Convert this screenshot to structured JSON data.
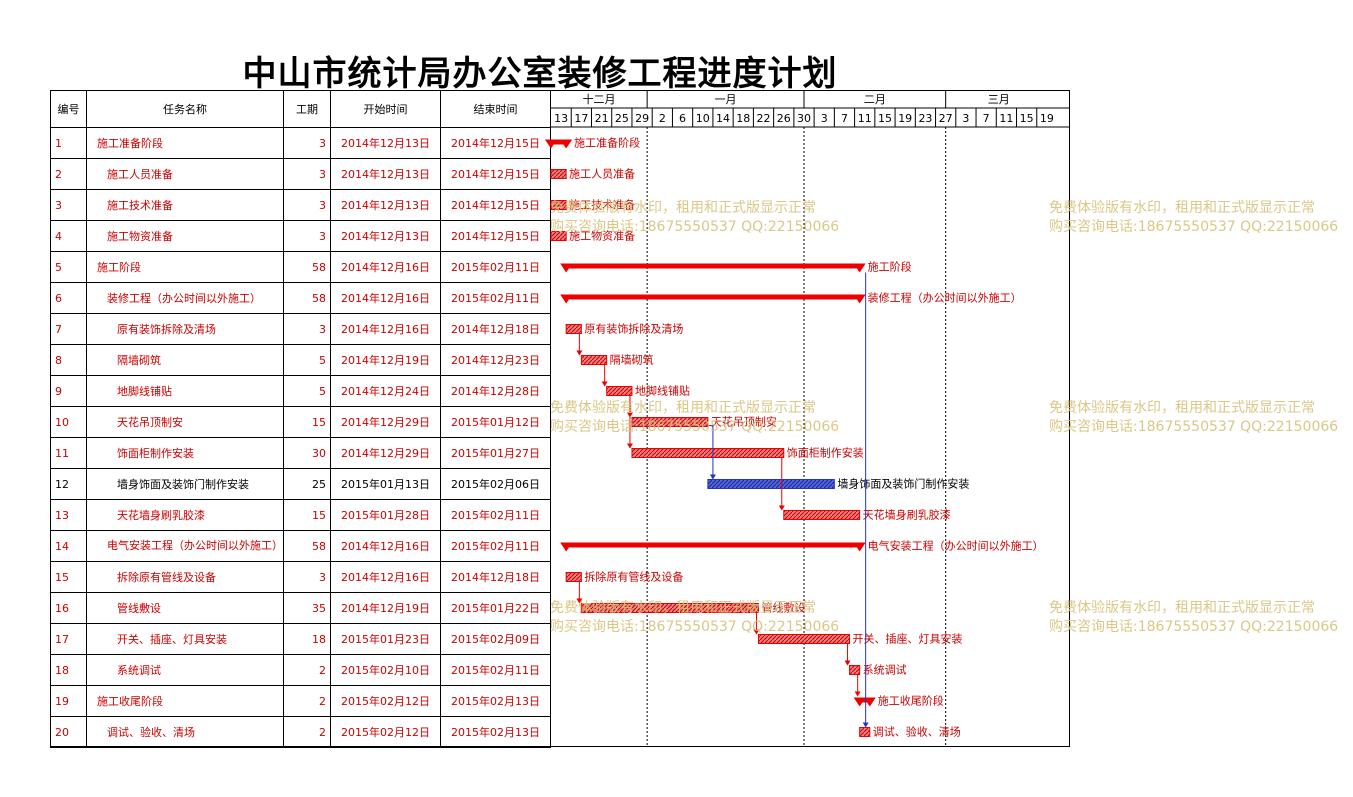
{
  "title": "中山市统计局办公室装修工程进度计划",
  "headers": {
    "id": "编号",
    "name": "任务名称",
    "duration": "工期",
    "start": "开始时间",
    "end": "结束时间"
  },
  "colors": {
    "red": "#ee0000",
    "summary": "#ee0000",
    "task_fill": "#e88080",
    "blue": "#2233cc",
    "blue_fill": "#5566cc"
  },
  "watermark": {
    "line1": "免费体验版有水印，租用和正式版显示正常",
    "line2": "购买咨询电话:18675550537 QQ:22150066"
  },
  "chart_data": {
    "type": "gantt",
    "months": [
      {
        "label": "十二月",
        "start": "2014-12-13",
        "end": "2014-12-31"
      },
      {
        "label": "一月",
        "start": "2015-01-01",
        "end": "2015-01-31"
      },
      {
        "label": "二月",
        "start": "2015-02-01",
        "end": "2015-02-28"
      },
      {
        "label": "三月",
        "start": "2015-03-01",
        "end": "2015-03-21"
      }
    ],
    "day_ticks": [
      "13",
      "17",
      "21",
      "25",
      "29",
      "2",
      "6",
      "10",
      "14",
      "18",
      "22",
      "26",
      "30",
      "3",
      "7",
      "11",
      "15",
      "19",
      "23",
      "27",
      "3",
      "7",
      "11",
      "15",
      "19"
    ],
    "x_start": "2014-12-13",
    "x_end": "2015-03-21",
    "tasks": [
      {
        "id": "1",
        "name": "施工准备阶段",
        "level": 1,
        "duration": "3",
        "start": "2014年12月13日",
        "end": "2014年12月15日",
        "start_date": "2014-12-13",
        "end_date": "2014-12-15",
        "kind": "summary",
        "color": "red",
        "label": "施工准备阶段"
      },
      {
        "id": "2",
        "name": "施工人员准备",
        "level": 2,
        "duration": "3",
        "start": "2014年12月13日",
        "end": "2014年12月15日",
        "start_date": "2014-12-13",
        "end_date": "2014-12-15",
        "kind": "task",
        "color": "red",
        "label": "施工人员准备"
      },
      {
        "id": "3",
        "name": "施工技术准备",
        "level": 2,
        "duration": "3",
        "start": "2014年12月13日",
        "end": "2014年12月15日",
        "start_date": "2014-12-13",
        "end_date": "2014-12-15",
        "kind": "task",
        "color": "red",
        "label": "施工技术准备"
      },
      {
        "id": "4",
        "name": "施工物资准备",
        "level": 2,
        "duration": "3",
        "start": "2014年12月13日",
        "end": "2014年12月15日",
        "start_date": "2014-12-13",
        "end_date": "2014-12-15",
        "kind": "task",
        "color": "red",
        "label": "施工物资准备"
      },
      {
        "id": "5",
        "name": "施工阶段",
        "level": 1,
        "duration": "58",
        "start": "2014年12月16日",
        "end": "2015年02月11日",
        "start_date": "2014-12-16",
        "end_date": "2015-02-11",
        "kind": "summary",
        "color": "red",
        "label": "施工阶段"
      },
      {
        "id": "6",
        "name": "装修工程（办公时间以外施工）",
        "level": 2,
        "duration": "58",
        "start": "2014年12月16日",
        "end": "2015年02月11日",
        "start_date": "2014-12-16",
        "end_date": "2015-02-11",
        "kind": "summary",
        "color": "red",
        "label": "装修工程（办公时间以外施工）"
      },
      {
        "id": "7",
        "name": "原有装饰拆除及清场",
        "level": 3,
        "duration": "3",
        "start": "2014年12月16日",
        "end": "2014年12月18日",
        "start_date": "2014-12-16",
        "end_date": "2014-12-18",
        "kind": "task",
        "color": "red",
        "label": "原有装饰拆除及清场"
      },
      {
        "id": "8",
        "name": "隔墙砌筑",
        "level": 3,
        "duration": "5",
        "start": "2014年12月19日",
        "end": "2014年12月23日",
        "start_date": "2014-12-19",
        "end_date": "2014-12-23",
        "kind": "task",
        "color": "red",
        "label": "隔墙砌筑"
      },
      {
        "id": "9",
        "name": "地脚线铺贴",
        "level": 3,
        "duration": "5",
        "start": "2014年12月24日",
        "end": "2014年12月28日",
        "start_date": "2014-12-24",
        "end_date": "2014-12-28",
        "kind": "task",
        "color": "red",
        "label": "地脚线铺贴"
      },
      {
        "id": "10",
        "name": "天花吊顶制安",
        "level": 3,
        "duration": "15",
        "start": "2014年12月29日",
        "end": "2015年01月12日",
        "start_date": "2014-12-29",
        "end_date": "2015-01-12",
        "kind": "task",
        "color": "red",
        "label": "天花吊顶制安"
      },
      {
        "id": "11",
        "name": "饰面柜制作安装",
        "level": 3,
        "duration": "30",
        "start": "2014年12月29日",
        "end": "2015年01月27日",
        "start_date": "2014-12-29",
        "end_date": "2015-01-27",
        "kind": "task",
        "color": "red",
        "label": "饰面柜制作安装"
      },
      {
        "id": "12",
        "name": "墙身饰面及装饰门制作安装",
        "level": 3,
        "duration": "25",
        "start": "2015年01月13日",
        "end": "2015年02月06日",
        "start_date": "2015-01-13",
        "end_date": "2015-02-06",
        "kind": "task",
        "color": "blue",
        "label": "墙身饰面及装饰门制作安装"
      },
      {
        "id": "13",
        "name": "天花墙身刷乳胶漆",
        "level": 3,
        "duration": "15",
        "start": "2015年01月28日",
        "end": "2015年02月11日",
        "start_date": "2015-01-28",
        "end_date": "2015-02-11",
        "kind": "task",
        "color": "red",
        "label": "天花墙身刷乳胶漆"
      },
      {
        "id": "14",
        "name": "电气安装工程（办公时间以外施工）",
        "level": 2,
        "duration": "58",
        "start": "2014年12月16日",
        "end": "2015年02月11日",
        "start_date": "2014-12-16",
        "end_date": "2015-02-11",
        "kind": "summary",
        "color": "red",
        "label": "电气安装工程（办公时间以外施工）"
      },
      {
        "id": "15",
        "name": "拆除原有管线及设备",
        "level": 3,
        "duration": "3",
        "start": "2014年12月16日",
        "end": "2014年12月18日",
        "start_date": "2014-12-16",
        "end_date": "2014-12-18",
        "kind": "task",
        "color": "red",
        "label": "拆除原有管线及设备"
      },
      {
        "id": "16",
        "name": "管线敷设",
        "level": 3,
        "duration": "35",
        "start": "2014年12月19日",
        "end": "2015年01月22日",
        "start_date": "2014-12-19",
        "end_date": "2015-01-22",
        "kind": "task",
        "color": "red",
        "label": "管线敷设"
      },
      {
        "id": "17",
        "name": "开关、插座、灯具安装",
        "level": 3,
        "duration": "18",
        "start": "2015年01月23日",
        "end": "2015年02月09日",
        "start_date": "2015-01-23",
        "end_date": "2015-02-09",
        "kind": "task",
        "color": "red",
        "label": "开关、插座、灯具安装"
      },
      {
        "id": "18",
        "name": "系统调试",
        "level": 3,
        "duration": "2",
        "start": "2015年02月10日",
        "end": "2015年02月11日",
        "start_date": "2015-02-10",
        "end_date": "2015-02-11",
        "kind": "task",
        "color": "red",
        "label": "系统调试"
      },
      {
        "id": "19",
        "name": "施工收尾阶段",
        "level": 1,
        "duration": "2",
        "start": "2015年02月12日",
        "end": "2015年02月13日",
        "start_date": "2015-02-12",
        "end_date": "2015-02-13",
        "kind": "summary",
        "color": "red",
        "label": "施工收尾阶段"
      },
      {
        "id": "20",
        "name": "调试、验收、清场",
        "level": 2,
        "duration": "2",
        "start": "2015年02月12日",
        "end": "2015年02月13日",
        "start_date": "2015-02-12",
        "end_date": "2015-02-13",
        "kind": "task",
        "color": "red",
        "label": "调试、验收、清场"
      }
    ],
    "links": [
      {
        "from": "10",
        "to": "12",
        "color": "blue"
      },
      {
        "from": "5",
        "to": "20",
        "color": "blue"
      },
      {
        "from": "7",
        "to": "8",
        "color": "red"
      },
      {
        "from": "8",
        "to": "9",
        "color": "red"
      },
      {
        "from": "9",
        "to": "10",
        "color": "red"
      },
      {
        "from": "9",
        "to": "11",
        "color": "red"
      },
      {
        "from": "11",
        "to": "13",
        "color": "red"
      },
      {
        "from": "15",
        "to": "16",
        "color": "red"
      },
      {
        "from": "16",
        "to": "17",
        "color": "red"
      },
      {
        "from": "17",
        "to": "18",
        "color": "red"
      },
      {
        "from": "18",
        "to": "19",
        "color": "red"
      }
    ]
  }
}
